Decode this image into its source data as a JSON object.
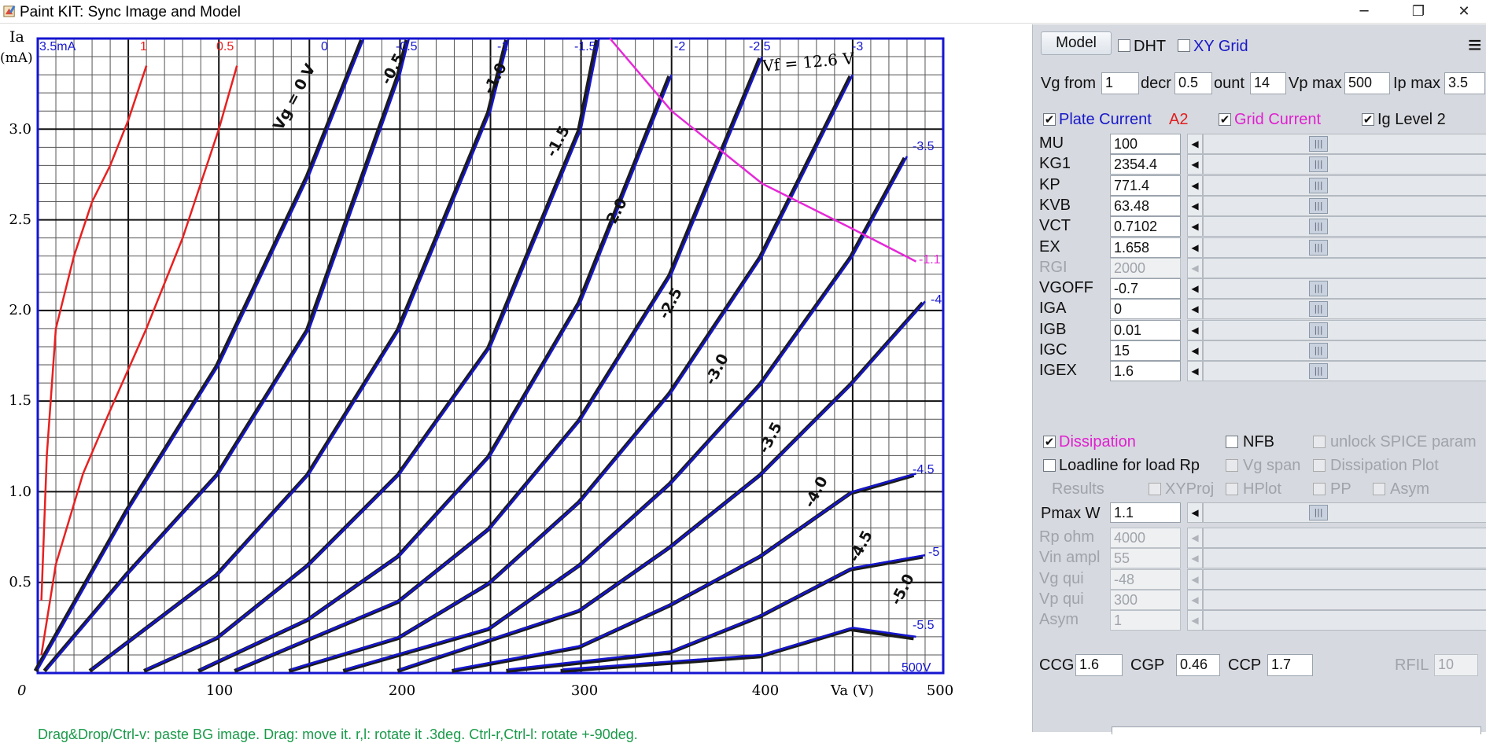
{
  "window": {
    "title": "Paint KIT: Sync Image and Model",
    "minimize": "─",
    "restore": "❐",
    "close": "✕"
  },
  "plot": {
    "status_hint": "Drag&Drop/Ctrl-v: paste BG image. Drag: move it. r,l: rotate it .3deg. Ctrl-r,Ctrl-l: rotate +-90deg.",
    "y_axis_title_1": "Ia",
    "y_axis_title_2": "(mA)",
    "x_axis_title": "Va (V)",
    "origin_label": "0",
    "y_ticks": [
      "3.0",
      "2.5",
      "2.0",
      "1.5",
      "1.0",
      "0.5"
    ],
    "x_ticks": [
      "100",
      "200",
      "300",
      "400",
      "500"
    ],
    "top_labels": [
      "3.5mA",
      "1",
      "0.5",
      "0",
      "-0.5",
      "-1",
      "-1.5",
      "-2",
      "-2.5",
      "-3"
    ],
    "right_labels": [
      "-3.5",
      "-1.1",
      "-4",
      "-4.5",
      "-5",
      "-5.5",
      "500V"
    ],
    "datasheet_labels": [
      "Vg = 0 V",
      "-0.5",
      "-1.0",
      "-1.5",
      "-2.0",
      "-2.5",
      "-3.0",
      "-3.5",
      "-4.0",
      "-4.5",
      "-5.0"
    ],
    "heater_label": "Vf = 12.6 V"
  },
  "chart_data": {
    "type": "line",
    "xlabel": "Va (V)",
    "ylabel": "Ia (mA)",
    "xlim": [
      0,
      500
    ],
    "ylim": [
      0,
      3.5
    ],
    "grid": true,
    "series": [
      {
        "name": "1",
        "color": "#e82020",
        "x": [
          2,
          5,
          10,
          20,
          30,
          40,
          50,
          60
        ],
        "y": [
          0.4,
          1.2,
          1.9,
          2.3,
          2.6,
          2.8,
          3.05,
          3.35
        ]
      },
      {
        "name": "0.5",
        "color": "#e82020",
        "x": [
          2,
          10,
          25,
          40,
          60,
          80,
          100,
          110
        ],
        "y": [
          0.1,
          0.6,
          1.1,
          1.45,
          1.9,
          2.4,
          3.0,
          3.35
        ]
      },
      {
        "name": "0",
        "color": "#1515d0",
        "x": [
          0,
          50,
          100,
          150,
          180
        ],
        "y": [
          0.02,
          0.9,
          1.7,
          2.75,
          3.5
        ]
      },
      {
        "name": "-0.5",
        "color": "#1515d0",
        "x": [
          5,
          50,
          100,
          150,
          200,
          205
        ],
        "y": [
          0.02,
          0.55,
          1.1,
          1.9,
          3.3,
          3.5
        ]
      },
      {
        "name": "-1",
        "color": "#1515d0",
        "x": [
          30,
          100,
          150,
          200,
          250,
          260
        ],
        "y": [
          0.02,
          0.55,
          1.1,
          1.9,
          3.1,
          3.5
        ]
      },
      {
        "name": "-1.5",
        "color": "#1515d0",
        "x": [
          60,
          100,
          150,
          200,
          250,
          300,
          310
        ],
        "y": [
          0.02,
          0.2,
          0.6,
          1.1,
          1.8,
          3.0,
          3.5
        ]
      },
      {
        "name": "-2",
        "color": "#1515d0",
        "x": [
          90,
          150,
          200,
          250,
          300,
          350
        ],
        "y": [
          0.02,
          0.3,
          0.65,
          1.2,
          2.05,
          3.3
        ]
      },
      {
        "name": "-2.5",
        "color": "#1515d0",
        "x": [
          110,
          200,
          250,
          300,
          350,
          400
        ],
        "y": [
          0.02,
          0.4,
          0.8,
          1.4,
          2.2,
          3.4
        ]
      },
      {
        "name": "-3",
        "color": "#1515d0",
        "x": [
          140,
          200,
          250,
          300,
          350,
          400,
          450
        ],
        "y": [
          0.02,
          0.2,
          0.5,
          0.95,
          1.55,
          2.3,
          3.3
        ]
      },
      {
        "name": "-3.5",
        "color": "#1515d0",
        "x": [
          170,
          250,
          300,
          350,
          400,
          450,
          480
        ],
        "y": [
          0.02,
          0.25,
          0.6,
          1.05,
          1.6,
          2.3,
          2.85
        ]
      },
      {
        "name": "-4",
        "color": "#1515d0",
        "x": [
          200,
          300,
          350,
          400,
          450,
          490
        ],
        "y": [
          0.02,
          0.35,
          0.7,
          1.1,
          1.6,
          2.05
        ]
      },
      {
        "name": "-4.5",
        "color": "#1515d0",
        "x": [
          230,
          300,
          350,
          400,
          450,
          485
        ],
        "y": [
          0.02,
          0.15,
          0.38,
          0.65,
          1.0,
          1.1
        ]
      },
      {
        "name": "-5",
        "color": "#1515d0",
        "x": [
          260,
          350,
          400,
          450,
          490
        ],
        "y": [
          0.02,
          0.12,
          0.32,
          0.58,
          0.65
        ]
      },
      {
        "name": "-5.5",
        "color": "#1515d0",
        "x": [
          290,
          400,
          450,
          485
        ],
        "y": [
          0.02,
          0.1,
          0.25,
          0.2
        ]
      },
      {
        "name": "Dissipation",
        "color": "#e628d8",
        "x": [
          316,
          350,
          400,
          450,
          485
        ],
        "y": [
          3.5,
          3.1,
          2.7,
          2.45,
          2.27
        ]
      }
    ]
  },
  "panel": {
    "model_button": "Model",
    "dht_label": "DHT",
    "xygrid_label": "XY Grid",
    "menu_icon": "≡",
    "vg_from_label": "Vg from",
    "vg_from_value": "1",
    "decr_label": "decr",
    "decr_value": "0.5",
    "count_label": "ount",
    "count_value": "14",
    "vpmax_label": "Vp max",
    "vpmax_value": "500",
    "ipmax_label": "Ip max",
    "ipmax_value": "3.5",
    "plate_current_label": "Plate Current",
    "a2_label": "A2",
    "grid_current_label": "Grid Current",
    "ig_level_label": "Ig Level 2",
    "params": [
      {
        "name": "MU",
        "value": "100",
        "enabled": true
      },
      {
        "name": "KG1",
        "value": "2354.4",
        "enabled": true
      },
      {
        "name": "KP",
        "value": "771.4",
        "enabled": true
      },
      {
        "name": "KVB",
        "value": "63.48",
        "enabled": true
      },
      {
        "name": "VCT",
        "value": "0.7102",
        "enabled": true
      },
      {
        "name": "EX",
        "value": "1.658",
        "enabled": true
      },
      {
        "name": "RGI",
        "value": "2000",
        "enabled": false
      },
      {
        "name": "VGOFF",
        "value": "-0.7",
        "enabled": true
      },
      {
        "name": "IGA",
        "value": "0",
        "enabled": true
      },
      {
        "name": "IGB",
        "value": "0.01",
        "enabled": true
      },
      {
        "name": "IGC",
        "value": "15",
        "enabled": true
      },
      {
        "name": "IGEX",
        "value": "1.6",
        "enabled": true
      }
    ],
    "dissipation_label": "Dissipation",
    "nfb_label": "NFB",
    "unlock_spice_label": "unlock SPICE param",
    "loadline_label": "Loadline for load Rp",
    "vg_span_label": "Vg span",
    "dissipation_plot_label": "Dissipation Plot",
    "results_label": "Results",
    "xyproj_label": "XYProj",
    "hplot_label": "HPlot",
    "pp_label": "PP",
    "asym_chk_label": "Asym",
    "pmax_label": "Pmax W",
    "pmax_value": "1.1",
    "dim_params": [
      {
        "name": "Rp ohm",
        "value": "4000"
      },
      {
        "name": "Vin ampl",
        "value": "55"
      },
      {
        "name": "Vg qui",
        "value": "-48"
      },
      {
        "name": "Vp qui",
        "value": "300"
      },
      {
        "name": "Asym",
        "value": "1"
      }
    ],
    "ccg_label": "CCG",
    "ccg_value": "1.6",
    "cgp_label": "CGP",
    "cgp_value": "0.46",
    "ccp_label": "CCP",
    "ccp_value": "1.7",
    "rfil_label": "RFIL",
    "rfil_value": "10"
  }
}
